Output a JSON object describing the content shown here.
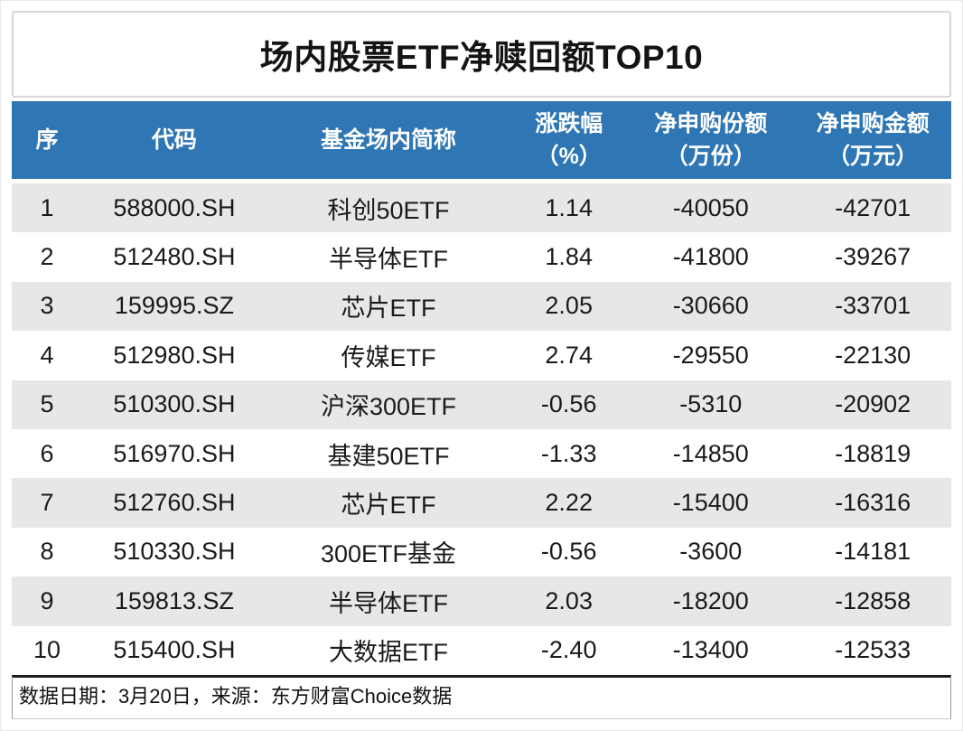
{
  "title": "场内股票ETF净赎回额TOP10",
  "table": {
    "columns": [
      {
        "label": "序",
        "unit": ""
      },
      {
        "label": "代码",
        "unit": ""
      },
      {
        "label": "基金场内简称",
        "unit": ""
      },
      {
        "label": "涨跌幅",
        "unit": "（%）"
      },
      {
        "label": "净申购份额",
        "unit": "（万份）"
      },
      {
        "label": "净申购金额",
        "unit": "（万元）"
      }
    ],
    "rows": [
      [
        "1",
        "588000.SH",
        "科创50ETF",
        "1.14",
        "-40050",
        "-42701"
      ],
      [
        "2",
        "512480.SH",
        "半导体ETF",
        "1.84",
        "-41800",
        "-39267"
      ],
      [
        "3",
        "159995.SZ",
        "芯片ETF",
        "2.05",
        "-30660",
        "-33701"
      ],
      [
        "4",
        "512980.SH",
        "传媒ETF",
        "2.74",
        "-29550",
        "-22130"
      ],
      [
        "5",
        "510300.SH",
        "沪深300ETF",
        "-0.56",
        "-5310",
        "-20902"
      ],
      [
        "6",
        "516970.SH",
        "基建50ETF",
        "-1.33",
        "-14850",
        "-18819"
      ],
      [
        "7",
        "512760.SH",
        "芯片ETF",
        "2.22",
        "-15400",
        "-16316"
      ],
      [
        "8",
        "510330.SH",
        "300ETF基金",
        "-0.56",
        "-3600",
        "-14181"
      ],
      [
        "9",
        "159813.SZ",
        "半导体ETF",
        "2.03",
        "-18200",
        "-12858"
      ],
      [
        "10",
        "515400.SH",
        "大数据ETF",
        "-2.40",
        "-13400",
        "-12533"
      ]
    ]
  },
  "footer": {
    "note": "数据日期：3月20日，来源：东方财富Choice数据"
  },
  "colors": {
    "header_bg": "#2F76B5",
    "header_text": "#FFFFFF",
    "stripe_row_bg": "#E8E7E7",
    "body_text": "#1A1A1A",
    "title_border": "#D6D6D6",
    "footer_top_border": "#1C1C1C"
  }
}
